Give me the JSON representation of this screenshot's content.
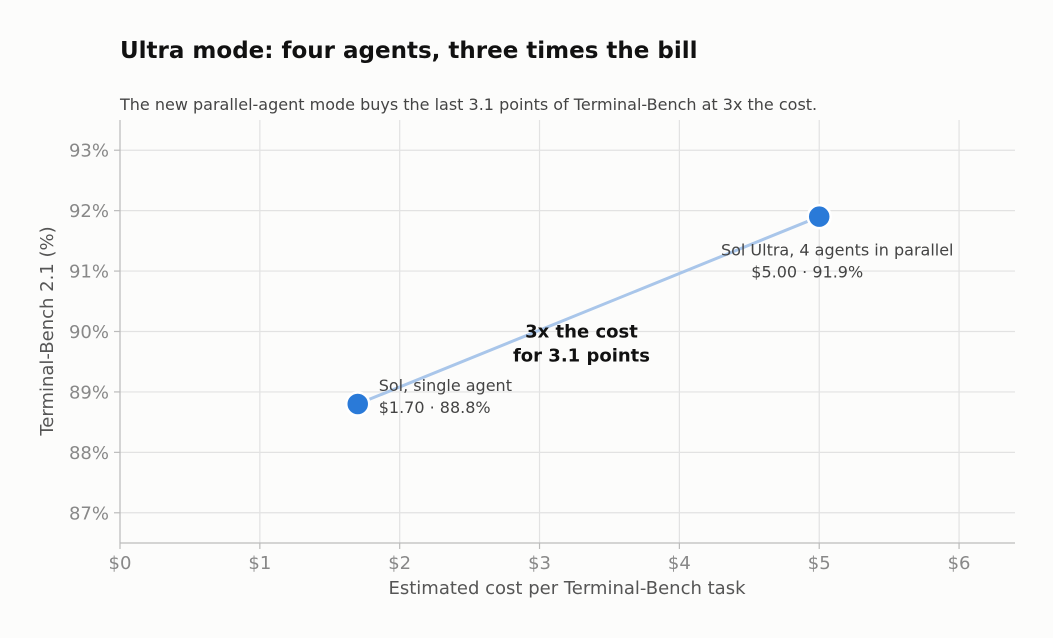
{
  "colors": {
    "point": "#2a7ad8",
    "line": "#a9c6ea",
    "grid": "#e2e2e2",
    "axis": "#bbbbbb"
  },
  "chart_data": {
    "type": "scatter",
    "title": "Ultra mode: four agents, three times the bill",
    "subtitle": "The new parallel-agent mode buys the last 3.1 points of Terminal-Bench at 3x the cost.",
    "xlabel": "Estimated cost per Terminal-Bench task",
    "ylabel": "Terminal-Bench 2.1 (%)",
    "xlim": [
      0,
      6.4
    ],
    "ylim": [
      86.5,
      93.5
    ],
    "x_ticks": [
      0,
      1,
      2,
      3,
      4,
      5,
      6
    ],
    "x_tick_labels": [
      "$0",
      "$1",
      "$2",
      "$3",
      "$4",
      "$5",
      "$6"
    ],
    "y_ticks": [
      87,
      88,
      89,
      90,
      91,
      92,
      93
    ],
    "y_tick_labels": [
      "87%",
      "88%",
      "89%",
      "90%",
      "91%",
      "92%",
      "93%"
    ],
    "grid": true,
    "connector_line": true,
    "points": [
      {
        "x": 1.7,
        "y": 88.8,
        "label": "Sol, single agent",
        "value_label": "$1.70 · 88.8%"
      },
      {
        "x": 5.0,
        "y": 91.9,
        "label": "Sol Ultra, 4 agents in parallel",
        "value_label": "$5.00 · 91.9%"
      }
    ],
    "annotation": {
      "lines": [
        "3x the cost",
        "for 3.1 points"
      ],
      "x": 3.3,
      "y": 89.9
    }
  }
}
